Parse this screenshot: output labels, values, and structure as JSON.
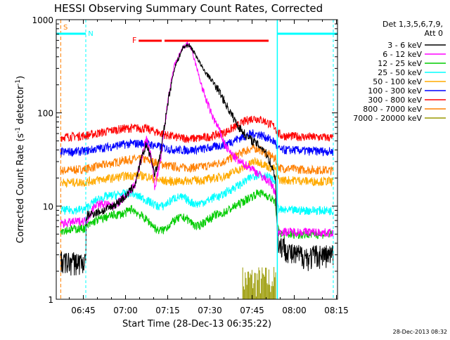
{
  "chart_data": {
    "type": "line",
    "title": "HESSI Observing Summary Count Rates, Corrected",
    "xlabel": "Start Time (28-Dec-13 06:35:22)",
    "ylabel_main": "Corrected Count Rate (s",
    "ylabel_sup1": "-1",
    "ylabel_mid": " detector",
    "ylabel_sup2": "-1",
    "ylabel_end": ")",
    "yscale": "log",
    "xlim_minutes": [
      0,
      100
    ],
    "ylim": [
      1,
      1000
    ],
    "x_ticks": [
      {
        "label": "06:45",
        "minute": 9.63
      },
      {
        "label": "07:00",
        "minute": 24.63
      },
      {
        "label": "07:15",
        "minute": 39.63
      },
      {
        "label": "07:30",
        "minute": 54.63
      },
      {
        "label": "07:45",
        "minute": 69.63
      },
      {
        "label": "08:00",
        "minute": 84.63
      },
      {
        "label": "08:15",
        "minute": 99.63
      }
    ],
    "y_ticks": [
      {
        "label": "1",
        "value": 1
      },
      {
        "label": "10",
        "value": 10
      },
      {
        "label": "100",
        "value": 100
      },
      {
        "label": "1000",
        "value": 1000
      }
    ],
    "legend_header": [
      "Det 1,3,5,6,7,9,",
      "Att 0"
    ],
    "series": [
      {
        "name": "3 - 6 keV",
        "color": "#000000",
        "x": [
          1.5,
          10.5,
          10.5,
          11,
          14,
          17,
          20,
          22,
          25,
          28,
          30,
          32,
          34,
          35,
          37,
          40,
          42,
          45,
          47,
          48,
          50,
          52,
          55,
          58,
          60,
          62,
          65,
          68,
          70,
          72,
          74,
          76,
          78,
          78.5,
          79,
          82,
          84,
          86,
          88,
          90,
          92,
          95,
          98.5
        ],
        "y": [
          2.5,
          2.5,
          6,
          8,
          8.5,
          9,
          10,
          11,
          13,
          17,
          30,
          46,
          30,
          22,
          35,
          150,
          300,
          500,
          540,
          500,
          400,
          300,
          230,
          170,
          130,
          100,
          70,
          55,
          50,
          45,
          40,
          30,
          20,
          6,
          4,
          3.5,
          3,
          3,
          3,
          2.8,
          3,
          3,
          3
        ]
      },
      {
        "name": "6 - 12 keV",
        "color": "#ff00ff",
        "x": [
          1.5,
          10.5,
          11,
          14,
          17,
          20,
          22,
          25,
          28,
          30,
          32,
          34,
          35,
          37,
          40,
          42,
          45,
          47,
          48,
          50,
          52,
          55,
          58,
          60,
          62,
          65,
          68,
          70,
          72,
          74,
          76,
          78,
          78.5,
          79,
          82,
          86,
          90,
          95,
          98.5
        ],
        "y": [
          6.5,
          7,
          7.2,
          10.5,
          10.5,
          10,
          11,
          13,
          17,
          30,
          55,
          30,
          16,
          30,
          160,
          320,
          500,
          560,
          480,
          300,
          180,
          100,
          65,
          45,
          37,
          30,
          27,
          25,
          22,
          20,
          18,
          14,
          6,
          5.3,
          5.3,
          5.3,
          5.3,
          5.2,
          5.2
        ]
      },
      {
        "name": "12 - 25 keV",
        "color": "#00cc00",
        "x": [
          1.5,
          10,
          14,
          17,
          20,
          24,
          27,
          28,
          30,
          33,
          36,
          38,
          40,
          42,
          44,
          46,
          48,
          50,
          54,
          57,
          58,
          61,
          66,
          70,
          72,
          75,
          78,
          78.5,
          80,
          85,
          90,
          95,
          98.5
        ],
        "y": [
          5.5,
          5.8,
          7,
          7.5,
          8,
          8.3,
          9.4,
          8.8,
          8,
          6.8,
          5.5,
          5.5,
          6.2,
          7,
          7.5,
          7.5,
          6.7,
          6,
          7.2,
          8.2,
          8,
          9,
          11,
          13,
          14,
          13,
          11,
          6,
          5,
          5,
          5,
          5,
          5
        ]
      },
      {
        "name": "25 - 50 keV",
        "color": "#00ffff",
        "x": [
          1.5,
          10,
          14,
          17,
          20,
          24,
          27,
          28,
          30,
          33,
          36,
          38,
          40,
          42,
          44,
          46,
          48,
          50,
          54,
          57,
          58,
          61,
          66,
          70,
          72,
          75,
          78,
          78.5,
          80,
          85,
          90,
          95,
          98.5
        ],
        "y": [
          9,
          9.2,
          11.5,
          12.5,
          13,
          13.5,
          14,
          13,
          12.5,
          11.2,
          10,
          10,
          11,
          12.3,
          12.5,
          12,
          11,
          10.5,
          11.5,
          13,
          12.5,
          14.5,
          17.5,
          21,
          22,
          21,
          18,
          10,
          9,
          9,
          9,
          9,
          8.9
        ]
      },
      {
        "name": "50 - 100 keV",
        "color": "#ffaa00",
        "x": [
          1.5,
          10,
          14,
          20,
          24,
          28,
          32,
          36,
          40,
          44,
          48,
          52,
          56,
          60,
          64,
          68,
          70,
          72,
          74,
          76,
          78,
          78.5,
          80,
          85,
          90,
          95,
          98.5
        ],
        "y": [
          18,
          18,
          19,
          20,
          21,
          21.5,
          21,
          19,
          18.5,
          18.5,
          19,
          19,
          20,
          21,
          24,
          27,
          30,
          30,
          28,
          26,
          25,
          20,
          19,
          19,
          18.5,
          18.5,
          18.5
        ]
      },
      {
        "name": "100 - 300 keV",
        "color": "#0000ff",
        "x": [
          1.5,
          10,
          14,
          20,
          24,
          28,
          32,
          36,
          40,
          44,
          48,
          52,
          56,
          60,
          64,
          68,
          70,
          72,
          74,
          76,
          78,
          78.5,
          80,
          85,
          90,
          95,
          98.5
        ],
        "y": [
          38,
          39,
          41,
          44,
          46,
          47,
          47,
          44,
          41,
          40,
          40,
          41,
          43,
          46,
          52,
          58,
          60,
          59,
          56,
          52,
          48,
          42,
          40,
          40,
          39,
          39,
          38.5
        ]
      },
      {
        "name": "300 - 800 keV",
        "color": "#ff0000",
        "x": [
          1.5,
          10,
          14,
          20,
          24,
          28,
          32,
          36,
          40,
          44,
          48,
          52,
          56,
          60,
          64,
          68,
          70,
          72,
          74,
          76,
          78,
          78.5,
          80,
          85,
          90,
          95,
          98.5
        ],
        "y": [
          55,
          57,
          60,
          65,
          68,
          69,
          68,
          62,
          57,
          54,
          53,
          54,
          57,
          62,
          72,
          84,
          88,
          86,
          82,
          76,
          70,
          62,
          57,
          56,
          55,
          55,
          54
        ]
      },
      {
        "name": "800 - 7000 keV",
        "color": "#ff8000",
        "x": [
          1.5,
          10,
          14,
          20,
          24,
          28,
          32,
          36,
          40,
          44,
          48,
          52,
          56,
          60,
          64,
          68,
          70,
          72,
          74,
          76,
          78,
          78.5,
          80,
          85,
          90,
          95,
          98.5
        ],
        "y": [
          24,
          25,
          26.5,
          29,
          31,
          32,
          31.5,
          29,
          27,
          26,
          26,
          26.5,
          28,
          30.5,
          35,
          40,
          42,
          41,
          38,
          35,
          32,
          27,
          25.5,
          25,
          24.5,
          24.5,
          24
        ]
      },
      {
        "name": "7000 - 20000 keV",
        "color": "#999900",
        "x": [
          66,
          66,
          78
        ],
        "y": [
          1,
          2.2,
          2.2
        ]
      }
    ],
    "status_bars": [
      {
        "label": "S",
        "color": "#ff8000"
      },
      {
        "label": "N",
        "color": "#00ffff"
      },
      {
        "label": "F",
        "color": "#ff0000"
      }
    ],
    "footer_timestamp": "28-Dec-2013 08:32"
  }
}
